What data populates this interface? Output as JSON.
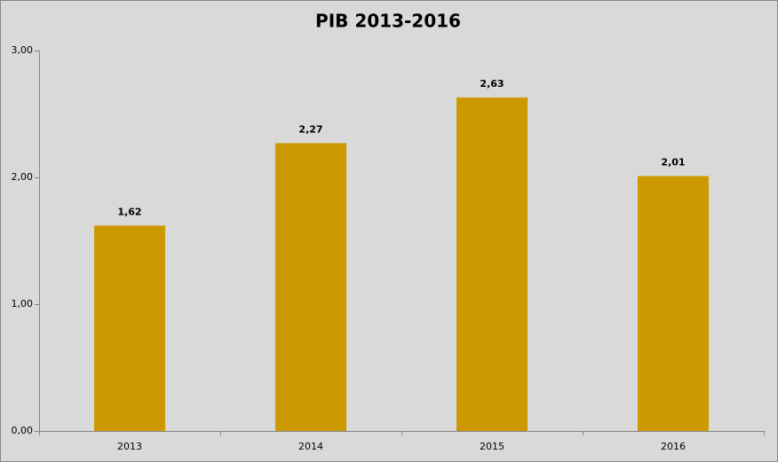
{
  "chart_data": {
    "type": "bar",
    "title": "PIB 2013-2016",
    "categories": [
      "2013",
      "2014",
      "2015",
      "2016"
    ],
    "values": [
      1.62,
      2.27,
      2.63,
      2.01
    ],
    "value_labels": [
      "1,62",
      "2,27",
      "2,63",
      "2,01"
    ],
    "color": "#cc9a00",
    "ylim": [
      0,
      3
    ],
    "yticks": [
      {
        "value": 0,
        "label": "0,00"
      },
      {
        "value": 1,
        "label": "1,00"
      },
      {
        "value": 2,
        "label": "2,00"
      },
      {
        "value": 3,
        "label": "3,00"
      }
    ],
    "grid": false
  }
}
